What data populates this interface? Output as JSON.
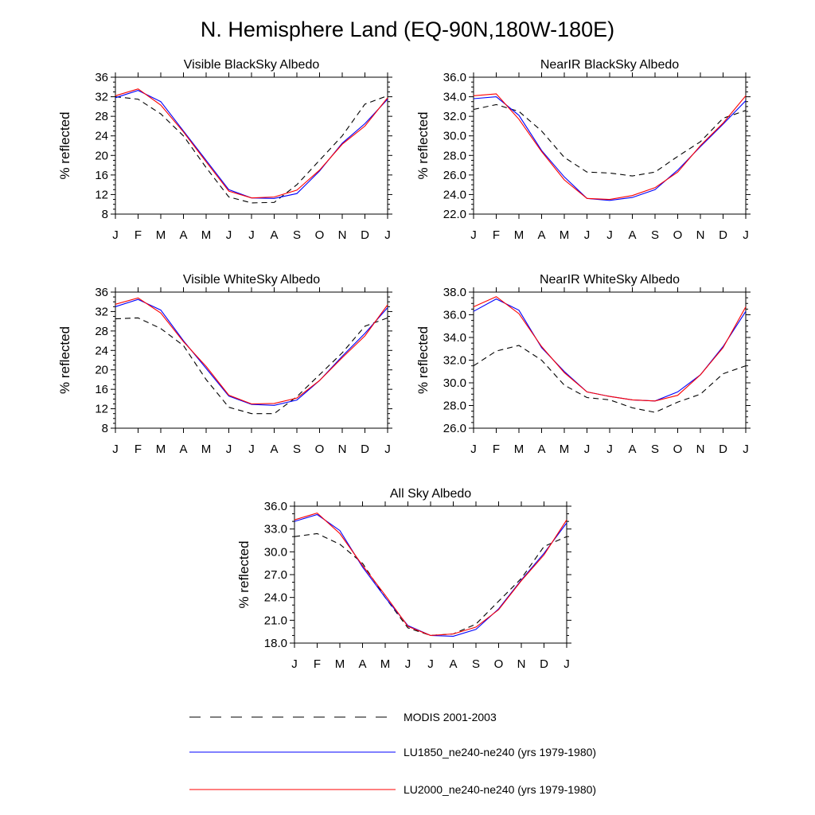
{
  "title": "N. Hemisphere Land (EQ-90N,180W-180E)",
  "legend": {
    "placement": "bottom",
    "entries": [
      {
        "label": "MODIS 2001-2003",
        "color": "#000000",
        "style": "dashed"
      },
      {
        "label": "LU1850_ne240-ne240 (yrs 1979-1980)",
        "color": "#0000ff",
        "style": "solid"
      },
      {
        "label": "LU2000_ne240-ne240 (yrs 1979-1980)",
        "color": "#ff0000",
        "style": "solid"
      }
    ]
  },
  "chart_data": [
    {
      "type": "line",
      "title": "Visible BlackSky Albedo",
      "ylabel": "% reflected",
      "categories": [
        "J",
        "F",
        "M",
        "A",
        "M",
        "J",
        "J",
        "A",
        "S",
        "O",
        "N",
        "D",
        "J"
      ],
      "ylim": [
        8,
        36
      ],
      "yticks": [
        "8",
        "12",
        "16",
        "20",
        "24",
        "28",
        "32",
        "36"
      ],
      "grid": false,
      "series": [
        {
          "name": "MODIS 2001-2003",
          "color": "#000000",
          "dash": true,
          "values": [
            32.0,
            31.5,
            28.5,
            24.0,
            17.5,
            11.5,
            10.3,
            10.4,
            14.0,
            19.0,
            24.0,
            30.5,
            32.2
          ]
        },
        {
          "name": "LU1850_ne240-ne240 (yrs 1979-1980)",
          "color": "#0000ff",
          "dash": false,
          "values": [
            31.8,
            33.3,
            31.0,
            25.0,
            19.0,
            13.0,
            11.3,
            11.2,
            12.2,
            16.8,
            22.5,
            26.5,
            31.5
          ]
        },
        {
          "name": "LU2000_ne240-ne240 (yrs 1979-1980)",
          "color": "#ff0000",
          "dash": false,
          "values": [
            32.2,
            33.6,
            30.3,
            24.8,
            18.7,
            12.7,
            11.3,
            11.5,
            12.9,
            17.0,
            22.3,
            26.0,
            31.8
          ]
        }
      ]
    },
    {
      "type": "line",
      "title": "NearIR BlackSky Albedo",
      "ylabel": "% reflected",
      "categories": [
        "J",
        "F",
        "M",
        "A",
        "M",
        "J",
        "J",
        "A",
        "S",
        "O",
        "N",
        "D",
        "J"
      ],
      "ylim": [
        22,
        36
      ],
      "yticks": [
        "22.0",
        "24.0",
        "26.0",
        "28.0",
        "30.0",
        "32.0",
        "34.0",
        "36.0"
      ],
      "grid": false,
      "series": [
        {
          "name": "MODIS 2001-2003",
          "color": "#000000",
          "dash": true,
          "values": [
            32.7,
            33.2,
            32.5,
            30.5,
            27.8,
            26.3,
            26.2,
            25.9,
            26.3,
            27.9,
            29.4,
            31.8,
            32.6
          ]
        },
        {
          "name": "LU1850_ne240-ne240 (yrs 1979-1980)",
          "color": "#0000ff",
          "dash": false,
          "values": [
            33.8,
            34.0,
            32.1,
            28.5,
            25.8,
            23.6,
            23.4,
            23.7,
            24.5,
            26.5,
            28.9,
            31.2,
            33.6
          ]
        },
        {
          "name": "LU2000_ne240-ne240 (yrs 1979-1980)",
          "color": "#ff0000",
          "dash": false,
          "values": [
            34.1,
            34.3,
            31.7,
            28.4,
            25.5,
            23.6,
            23.5,
            23.9,
            24.7,
            26.3,
            29.0,
            31.3,
            34.1
          ]
        }
      ]
    },
    {
      "type": "line",
      "title": "Visible WhiteSky Albedo",
      "ylabel": "% reflected",
      "categories": [
        "J",
        "F",
        "M",
        "A",
        "M",
        "J",
        "J",
        "A",
        "S",
        "O",
        "N",
        "D",
        "J"
      ],
      "ylim": [
        8,
        36
      ],
      "yticks": [
        "8",
        "12",
        "16",
        "20",
        "24",
        "28",
        "32",
        "36"
      ],
      "grid": false,
      "series": [
        {
          "name": "MODIS 2001-2003",
          "color": "#000000",
          "dash": true,
          "values": [
            30.5,
            30.7,
            28.5,
            25.0,
            18.0,
            12.3,
            11.0,
            11.0,
            14.5,
            19.0,
            23.5,
            29.0,
            30.7
          ]
        },
        {
          "name": "LU1850_ne240-ne240 (yrs 1979-1980)",
          "color": "#0000ff",
          "dash": false,
          "values": [
            33.0,
            34.5,
            32.3,
            26.0,
            20.3,
            14.6,
            12.9,
            12.7,
            13.8,
            17.8,
            22.8,
            27.5,
            32.8
          ]
        },
        {
          "name": "LU2000_ne240-ne240 (yrs 1979-1980)",
          "color": "#ff0000",
          "dash": false,
          "values": [
            33.5,
            34.8,
            31.7,
            25.8,
            20.7,
            14.8,
            13.0,
            13.1,
            14.2,
            17.8,
            22.5,
            27.0,
            33.4
          ]
        }
      ]
    },
    {
      "type": "line",
      "title": "NearIR WhiteSky Albedo",
      "ylabel": "% reflected",
      "categories": [
        "J",
        "F",
        "M",
        "A",
        "M",
        "J",
        "J",
        "A",
        "S",
        "O",
        "N",
        "D",
        "J"
      ],
      "ylim": [
        26,
        38
      ],
      "yticks": [
        "26.0",
        "28.0",
        "30.0",
        "32.0",
        "34.0",
        "36.0",
        "38.0"
      ],
      "grid": false,
      "series": [
        {
          "name": "MODIS 2001-2003",
          "color": "#000000",
          "dash": true,
          "values": [
            31.5,
            32.8,
            33.3,
            32.0,
            29.8,
            28.7,
            28.5,
            27.8,
            27.4,
            28.3,
            29.0,
            30.8,
            31.5
          ]
        },
        {
          "name": "LU1850_ne240-ne240 (yrs 1979-1980)",
          "color": "#0000ff",
          "dash": false,
          "values": [
            36.3,
            37.4,
            36.4,
            33.1,
            31.0,
            29.2,
            28.8,
            28.5,
            28.4,
            29.2,
            30.7,
            33.2,
            36.3
          ]
        },
        {
          "name": "LU2000_ne240-ne240 (yrs 1979-1980)",
          "color": "#ff0000",
          "dash": false,
          "values": [
            36.7,
            37.6,
            36.1,
            33.2,
            30.9,
            29.2,
            28.8,
            28.5,
            28.4,
            28.9,
            30.7,
            33.1,
            36.7
          ]
        }
      ]
    },
    {
      "type": "line",
      "title": "All Sky Albedo",
      "ylabel": "% reflected",
      "categories": [
        "J",
        "F",
        "M",
        "A",
        "M",
        "J",
        "J",
        "A",
        "S",
        "O",
        "N",
        "D",
        "J"
      ],
      "ylim": [
        18,
        36
      ],
      "yticks": [
        "18.0",
        "21.0",
        "24.0",
        "27.0",
        "30.0",
        "33.0",
        "36.0"
      ],
      "grid": false,
      "series": [
        {
          "name": "MODIS 2001-2003",
          "color": "#000000",
          "dash": true,
          "values": [
            32.0,
            32.4,
            31.0,
            28.5,
            24.0,
            20.0,
            19.0,
            19.2,
            20.5,
            23.5,
            26.5,
            30.7,
            32.0
          ]
        },
        {
          "name": "LU1850_ne240-ne240 (yrs 1979-1980)",
          "color": "#0000ff",
          "dash": false,
          "values": [
            34.0,
            34.9,
            32.8,
            28.0,
            24.0,
            20.3,
            19.0,
            18.9,
            19.8,
            22.5,
            26.3,
            29.8,
            33.8
          ]
        },
        {
          "name": "LU2000_ne240-ne240 (yrs 1979-1980)",
          "color": "#ff0000",
          "dash": false,
          "values": [
            34.2,
            35.1,
            32.4,
            28.2,
            24.3,
            20.2,
            19.0,
            19.2,
            20.1,
            22.4,
            26.2,
            29.6,
            34.2
          ]
        }
      ]
    }
  ]
}
